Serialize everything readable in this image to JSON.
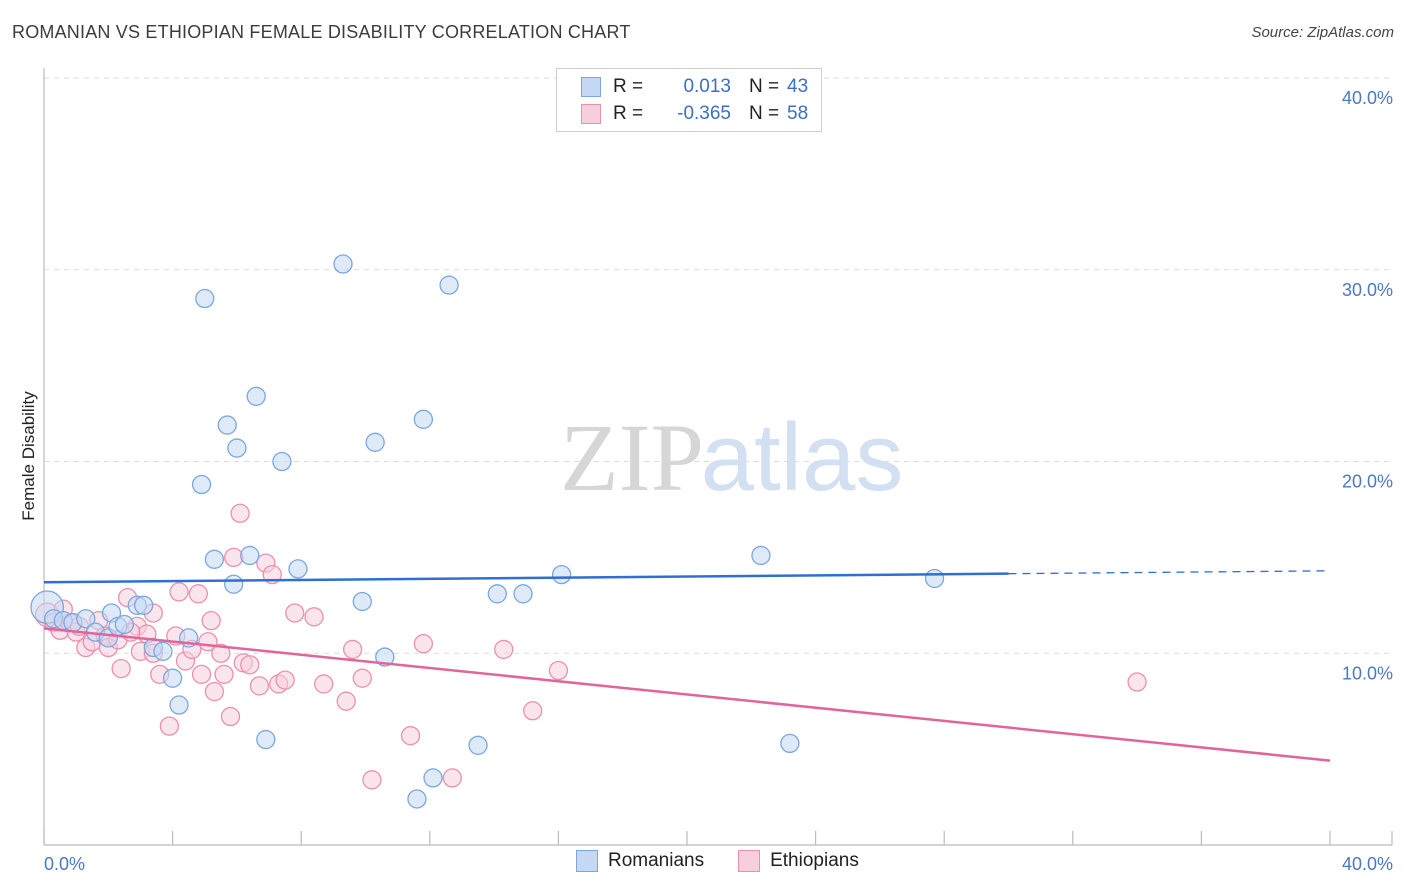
{
  "title": "ROMANIAN VS ETHIOPIAN FEMALE DISABILITY CORRELATION CHART",
  "source": "Source: ZipAtlas.com",
  "watermark": {
    "zip": "ZIP",
    "atlas": "atlas"
  },
  "legend": {
    "rows": [
      {
        "r_label": "R =",
        "r_value": "0.013",
        "n_label": "N =",
        "n_value": "43",
        "color": "#7aa7e0",
        "fill": "#c5d9f4"
      },
      {
        "r_label": "R =",
        "r_value": "-0.365",
        "n_label": "N =",
        "n_value": "58",
        "color": "#ec8fae",
        "fill": "#f7cfdc"
      }
    ]
  },
  "bottom_legend": [
    {
      "label": "Romanians",
      "color": "#7aa7e0",
      "fill": "#c5d9f4"
    },
    {
      "label": "Ethiopians",
      "color": "#ec8fae",
      "fill": "#f7cfdc"
    }
  ],
  "chart_data": {
    "type": "scatter",
    "title": "ROMANIAN VS ETHIOPIAN FEMALE DISABILITY CORRELATION CHART",
    "xlabel": "",
    "ylabel": "Female Disability",
    "xlim": [
      0,
      40
    ],
    "ylim": [
      0,
      40
    ],
    "x_tick_labels": [
      "0.0%",
      "40.0%"
    ],
    "y_ticks": [
      10,
      20,
      30,
      40
    ],
    "y_tick_labels": [
      "10.0%",
      "20.0%",
      "30.0%",
      "40.0%"
    ],
    "grid": true,
    "series": [
      {
        "name": "Romanians",
        "color": "#7aa7e0",
        "fill": "#c5d9f4",
        "trend": {
          "x_start": 0,
          "y_start": 13.7,
          "x_solid_end": 30,
          "x_end": 40,
          "y_end": 14.3,
          "color": "#2f6fd0"
        },
        "points": [
          [
            0.1,
            12.4,
            1.8
          ],
          [
            0.3,
            11.8,
            1
          ],
          [
            0.6,
            11.7,
            1
          ],
          [
            0.9,
            11.6,
            1
          ],
          [
            1.3,
            11.8,
            1
          ],
          [
            1.6,
            11.1,
            1
          ],
          [
            2.0,
            10.8,
            1
          ],
          [
            2.1,
            12.1,
            1
          ],
          [
            2.3,
            11.4,
            1
          ],
          [
            2.5,
            11.5,
            1
          ],
          [
            2.9,
            12.5,
            1
          ],
          [
            3.1,
            12.5,
            1
          ],
          [
            3.4,
            10.3,
            1
          ],
          [
            3.7,
            10.1,
            1
          ],
          [
            4.0,
            8.7,
            1
          ],
          [
            4.2,
            7.3,
            1
          ],
          [
            4.5,
            10.8,
            1
          ],
          [
            4.9,
            18.8,
            1
          ],
          [
            5.0,
            28.5,
            1
          ],
          [
            5.3,
            14.9,
            1
          ],
          [
            5.7,
            21.9,
            1
          ],
          [
            6.0,
            20.7,
            1
          ],
          [
            5.9,
            13.6,
            1
          ],
          [
            6.4,
            15.1,
            1
          ],
          [
            6.6,
            23.4,
            1
          ],
          [
            6.9,
            5.5,
            1
          ],
          [
            7.4,
            20.0,
            1
          ],
          [
            7.9,
            14.4,
            1
          ],
          [
            9.3,
            30.3,
            1
          ],
          [
            9.9,
            12.7,
            1
          ],
          [
            10.3,
            21.0,
            1
          ],
          [
            10.6,
            9.8,
            1
          ],
          [
            11.6,
            2.4,
            1
          ],
          [
            11.8,
            22.2,
            1
          ],
          [
            12.1,
            3.5,
            1
          ],
          [
            12.6,
            29.2,
            1
          ],
          [
            13.5,
            5.2,
            1
          ],
          [
            14.1,
            13.1,
            1
          ],
          [
            14.9,
            13.1,
            1
          ],
          [
            16.1,
            14.1,
            1
          ],
          [
            22.3,
            15.1,
            1
          ],
          [
            23.2,
            5.3,
            1
          ],
          [
            27.7,
            13.9,
            1
          ]
        ]
      },
      {
        "name": "Ethiopians",
        "color": "#ec8fae",
        "fill": "#f7cfdc",
        "trend": {
          "x_start": 0,
          "y_start": 11.3,
          "x_solid_end": 40,
          "x_end": 40,
          "y_end": 4.4,
          "color": "#e0659a"
        },
        "points": [
          [
            0.1,
            12.0,
            1.3
          ],
          [
            0.3,
            11.6,
            1
          ],
          [
            0.5,
            11.2,
            1
          ],
          [
            0.8,
            11.6,
            1
          ],
          [
            1.0,
            11.1,
            1
          ],
          [
            1.3,
            10.3,
            1
          ],
          [
            1.5,
            10.6,
            1
          ],
          [
            1.7,
            11.7,
            1
          ],
          [
            1.9,
            10.9,
            1
          ],
          [
            2.0,
            10.3,
            1
          ],
          [
            2.3,
            10.7,
            1
          ],
          [
            2.4,
            9.2,
            1
          ],
          [
            2.6,
            12.9,
            1
          ],
          [
            2.9,
            11.4,
            1
          ],
          [
            3.0,
            10.1,
            1
          ],
          [
            3.2,
            11.0,
            1
          ],
          [
            3.4,
            10.0,
            1
          ],
          [
            3.4,
            12.1,
            1
          ],
          [
            3.6,
            8.9,
            1
          ],
          [
            3.9,
            6.2,
            1
          ],
          [
            4.1,
            10.9,
            1
          ],
          [
            4.2,
            13.2,
            1
          ],
          [
            4.4,
            9.6,
            1
          ],
          [
            4.6,
            10.2,
            1
          ],
          [
            4.8,
            13.1,
            1
          ],
          [
            4.9,
            8.9,
            1
          ],
          [
            5.1,
            10.6,
            1
          ],
          [
            5.2,
            11.7,
            1
          ],
          [
            5.3,
            8.0,
            1
          ],
          [
            5.6,
            8.9,
            1
          ],
          [
            5.8,
            6.7,
            1
          ],
          [
            5.9,
            15.0,
            1
          ],
          [
            6.1,
            17.3,
            1
          ],
          [
            6.2,
            9.5,
            1
          ],
          [
            6.4,
            9.4,
            1
          ],
          [
            6.7,
            8.3,
            1
          ],
          [
            6.9,
            14.7,
            1
          ],
          [
            7.1,
            14.1,
            1
          ],
          [
            7.3,
            8.4,
            1
          ],
          [
            7.5,
            8.6,
            1
          ],
          [
            7.8,
            12.1,
            1
          ],
          [
            8.4,
            11.9,
            1
          ],
          [
            8.7,
            8.4,
            1
          ],
          [
            9.4,
            7.5,
            1
          ],
          [
            9.6,
            10.2,
            1
          ],
          [
            9.9,
            8.7,
            1
          ],
          [
            10.2,
            3.4,
            1
          ],
          [
            11.4,
            5.7,
            1
          ],
          [
            11.8,
            10.5,
            1
          ],
          [
            12.7,
            3.5,
            1
          ],
          [
            14.3,
            10.2,
            1
          ],
          [
            15.2,
            7.0,
            1
          ],
          [
            16.0,
            9.1,
            1
          ],
          [
            34.0,
            8.5,
            1
          ],
          [
            0.6,
            12.3,
            1
          ],
          [
            1.1,
            11.4,
            1
          ],
          [
            2.7,
            11.1,
            1
          ],
          [
            5.5,
            10.0,
            1
          ]
        ]
      }
    ]
  }
}
